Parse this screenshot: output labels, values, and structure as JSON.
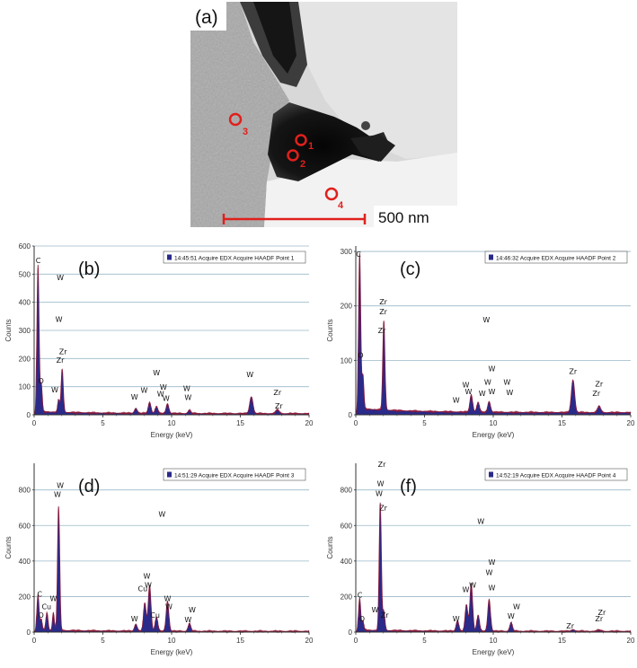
{
  "micrograph": {
    "label": "(a)",
    "scale_bar": "500 nm",
    "points": [
      "1",
      "2",
      "3",
      "4"
    ]
  },
  "colors": {
    "spectrum_fill": "#2a2a8a",
    "spectrum_line": "#8b1a3a",
    "grid": "#9ab8c8",
    "marker": "#e0201c"
  },
  "chart_data": [
    {
      "type": "area",
      "panel_label": "(b)",
      "legend": "14:45:51 Acquire EDX Acquire HAADF Point 1",
      "xlabel": "Energy (keV)",
      "ylabel": "Counts",
      "xlim": [
        0,
        20
      ],
      "ylim": [
        0,
        600
      ],
      "xticks": [
        0,
        5,
        10,
        15,
        20
      ],
      "yticks": [
        0,
        100,
        200,
        300,
        400,
        500,
        600
      ],
      "grid": true,
      "peaks": [
        {
          "x": 0.28,
          "y": 520,
          "w": 0.08
        },
        {
          "x": 0.52,
          "y": 95,
          "w": 0.07
        },
        {
          "x": 1.78,
          "y": 45,
          "w": 0.07
        },
        {
          "x": 2.04,
          "y": 155,
          "w": 0.08
        },
        {
          "x": 7.4,
          "y": 18,
          "w": 0.1
        },
        {
          "x": 8.4,
          "y": 40,
          "w": 0.1
        },
        {
          "x": 8.9,
          "y": 25,
          "w": 0.1
        },
        {
          "x": 9.7,
          "y": 35,
          "w": 0.1
        },
        {
          "x": 11.3,
          "y": 12,
          "w": 0.1
        },
        {
          "x": 15.8,
          "y": 60,
          "w": 0.12
        },
        {
          "x": 17.7,
          "y": 15,
          "w": 0.12
        }
      ],
      "peak_labels": [
        {
          "text": "C",
          "x": 0.3,
          "y": 540
        },
        {
          "text": "O",
          "x": 0.5,
          "y": 112
        },
        {
          "text": "W",
          "x": 1.5,
          "y": 80
        },
        {
          "text": "Zr",
          "x": 2.1,
          "y": 215
        },
        {
          "text": "Zr",
          "x": 1.9,
          "y": 185
        },
        {
          "text": "W",
          "x": 1.8,
          "y": 330
        },
        {
          "text": "W",
          "x": 1.9,
          "y": 478
        },
        {
          "text": "W",
          "x": 7.3,
          "y": 55
        },
        {
          "text": "W",
          "x": 8.0,
          "y": 78
        },
        {
          "text": "W",
          "x": 8.9,
          "y": 140
        },
        {
          "text": "W",
          "x": 9.2,
          "y": 65
        },
        {
          "text": "W",
          "x": 9.4,
          "y": 90
        },
        {
          "text": "W",
          "x": 9.6,
          "y": 50
        },
        {
          "text": "W",
          "x": 11.1,
          "y": 85
        },
        {
          "text": "W",
          "x": 11.2,
          "y": 52
        },
        {
          "text": "W",
          "x": 15.7,
          "y": 134
        },
        {
          "text": "Zr",
          "x": 17.7,
          "y": 70
        },
        {
          "text": "Zr",
          "x": 17.8,
          "y": 22
        }
      ]
    },
    {
      "type": "area",
      "panel_label": "(c)",
      "legend": "14:46:32 Acquire EDX Acquire HAADF Point 2",
      "xlabel": "Energy (keV)",
      "ylabel": "Counts",
      "xlim": [
        0,
        20
      ],
      "ylim": [
        0,
        310
      ],
      "xticks": [
        0,
        5,
        10,
        15,
        20
      ],
      "yticks": [
        0,
        100,
        200,
        300
      ],
      "grid": true,
      "peaks": [
        {
          "x": 0.28,
          "y": 285,
          "w": 0.08
        },
        {
          "x": 0.52,
          "y": 60,
          "w": 0.07
        },
        {
          "x": 2.04,
          "y": 165,
          "w": 0.08
        },
        {
          "x": 8.4,
          "y": 32,
          "w": 0.1
        },
        {
          "x": 8.9,
          "y": 18,
          "w": 0.1
        },
        {
          "x": 9.7,
          "y": 20,
          "w": 0.1
        },
        {
          "x": 15.8,
          "y": 60,
          "w": 0.12
        },
        {
          "x": 17.7,
          "y": 12,
          "w": 0.12
        }
      ],
      "peak_labels": [
        {
          "text": "C",
          "x": 0.2,
          "y": 290
        },
        {
          "text": "O",
          "x": 0.35,
          "y": 105
        },
        {
          "text": "Zr",
          "x": 1.9,
          "y": 150
        },
        {
          "text": "Zr",
          "x": 2.0,
          "y": 185
        },
        {
          "text": "Zr",
          "x": 2.0,
          "y": 203
        },
        {
          "text": "W",
          "x": 7.3,
          "y": 22
        },
        {
          "text": "W",
          "x": 8.0,
          "y": 50
        },
        {
          "text": "W",
          "x": 8.2,
          "y": 38
        },
        {
          "text": "W",
          "x": 9.2,
          "y": 35
        },
        {
          "text": "W",
          "x": 9.6,
          "y": 55
        },
        {
          "text": "W",
          "x": 9.9,
          "y": 80
        },
        {
          "text": "W",
          "x": 9.9,
          "y": 38
        },
        {
          "text": "W",
          "x": 11.0,
          "y": 55
        },
        {
          "text": "W",
          "x": 11.2,
          "y": 36
        },
        {
          "text": "W",
          "x": 9.5,
          "y": 170
        },
        {
          "text": "Zr",
          "x": 15.8,
          "y": 75
        },
        {
          "text": "Zr",
          "x": 17.7,
          "y": 52
        },
        {
          "text": "Zr",
          "x": 17.5,
          "y": 35
        }
      ]
    },
    {
      "type": "area",
      "panel_label": "(d)",
      "legend": "14:51:29 Acquire EDX Acquire HAADF Point 3",
      "xlabel": "Energy (keV)",
      "ylabel": "Counts",
      "xlim": [
        0,
        20
      ],
      "ylim": [
        0,
        950
      ],
      "xticks": [
        0,
        5,
        10,
        15,
        20
      ],
      "yticks": [
        0,
        200,
        400,
        600,
        800
      ],
      "grid": true,
      "peaks": [
        {
          "x": 0.28,
          "y": 200,
          "w": 0.08
        },
        {
          "x": 0.52,
          "y": 60,
          "w": 0.07
        },
        {
          "x": 0.93,
          "y": 100,
          "w": 0.08
        },
        {
          "x": 1.4,
          "y": 100,
          "w": 0.07
        },
        {
          "x": 1.78,
          "y": 700,
          "w": 0.08
        },
        {
          "x": 7.4,
          "y": 40,
          "w": 0.1
        },
        {
          "x": 8.05,
          "y": 160,
          "w": 0.1
        },
        {
          "x": 8.4,
          "y": 260,
          "w": 0.1
        },
        {
          "x": 8.9,
          "y": 80,
          "w": 0.1
        },
        {
          "x": 9.7,
          "y": 170,
          "w": 0.1
        },
        {
          "x": 11.3,
          "y": 45,
          "w": 0.1
        }
      ],
      "peak_labels": [
        {
          "text": "C",
          "x": 0.4,
          "y": 200
        },
        {
          "text": "O",
          "x": 0.5,
          "y": 80
        },
        {
          "text": "Cu",
          "x": 0.9,
          "y": 130
        },
        {
          "text": "W",
          "x": 1.4,
          "y": 175
        },
        {
          "text": "W",
          "x": 1.7,
          "y": 760
        },
        {
          "text": "W",
          "x": 1.9,
          "y": 810
        },
        {
          "text": "W",
          "x": 9.3,
          "y": 650
        },
        {
          "text": "Cu",
          "x": 7.9,
          "y": 230
        },
        {
          "text": "W",
          "x": 8.3,
          "y": 250
        },
        {
          "text": "W",
          "x": 8.2,
          "y": 300
        },
        {
          "text": "Cu",
          "x": 8.8,
          "y": 80
        },
        {
          "text": "W",
          "x": 7.3,
          "y": 60
        },
        {
          "text": "W",
          "x": 9.7,
          "y": 175
        },
        {
          "text": "W",
          "x": 9.8,
          "y": 130
        },
        {
          "text": "W",
          "x": 11.5,
          "y": 110
        },
        {
          "text": "W",
          "x": 11.2,
          "y": 55
        }
      ]
    },
    {
      "type": "area",
      "panel_label": "(f)",
      "legend": "14:52:19 Acquire EDX Acquire HAADF Point 4",
      "xlabel": "Energy (keV)",
      "ylabel": "Counts",
      "xlim": [
        0,
        20
      ],
      "ylim": [
        0,
        950
      ],
      "xticks": [
        0,
        5,
        10,
        15,
        20
      ],
      "yticks": [
        0,
        200,
        400,
        600,
        800
      ],
      "grid": true,
      "peaks": [
        {
          "x": 0.28,
          "y": 180,
          "w": 0.08
        },
        {
          "x": 0.52,
          "y": 50,
          "w": 0.07
        },
        {
          "x": 1.78,
          "y": 720,
          "w": 0.08
        },
        {
          "x": 2.04,
          "y": 110,
          "w": 0.08
        },
        {
          "x": 7.4,
          "y": 60,
          "w": 0.1
        },
        {
          "x": 8.05,
          "y": 150,
          "w": 0.1
        },
        {
          "x": 8.4,
          "y": 270,
          "w": 0.1
        },
        {
          "x": 8.9,
          "y": 90,
          "w": 0.1
        },
        {
          "x": 9.7,
          "y": 180,
          "w": 0.1
        },
        {
          "x": 11.3,
          "y": 50,
          "w": 0.1
        },
        {
          "x": 15.8,
          "y": 10,
          "w": 0.12
        },
        {
          "x": 17.7,
          "y": 8,
          "w": 0.12
        }
      ],
      "peak_labels": [
        {
          "text": "C",
          "x": 0.3,
          "y": 195
        },
        {
          "text": "O",
          "x": 0.45,
          "y": 60
        },
        {
          "text": "W",
          "x": 1.4,
          "y": 110
        },
        {
          "text": "Zr",
          "x": 2.1,
          "y": 80
        },
        {
          "text": "Zr",
          "x": 1.9,
          "y": 930
        },
        {
          "text": "W",
          "x": 1.8,
          "y": 820
        },
        {
          "text": "W",
          "x": 1.7,
          "y": 765
        },
        {
          "text": "Zr",
          "x": 2.0,
          "y": 685
        },
        {
          "text": "W",
          "x": 9.1,
          "y": 610
        },
        {
          "text": "W",
          "x": 9.9,
          "y": 380
        },
        {
          "text": "W",
          "x": 9.7,
          "y": 320
        },
        {
          "text": "W",
          "x": 8.5,
          "y": 250
        },
        {
          "text": "W",
          "x": 8.0,
          "y": 225
        },
        {
          "text": "W",
          "x": 9.9,
          "y": 235
        },
        {
          "text": "W",
          "x": 7.3,
          "y": 60
        },
        {
          "text": "W",
          "x": 11.7,
          "y": 130
        },
        {
          "text": "W",
          "x": 11.3,
          "y": 75
        },
        {
          "text": "Zr",
          "x": 15.6,
          "y": 20
        },
        {
          "text": "Zr",
          "x": 17.9,
          "y": 95
        },
        {
          "text": "Zr",
          "x": 17.7,
          "y": 60
        }
      ]
    }
  ]
}
